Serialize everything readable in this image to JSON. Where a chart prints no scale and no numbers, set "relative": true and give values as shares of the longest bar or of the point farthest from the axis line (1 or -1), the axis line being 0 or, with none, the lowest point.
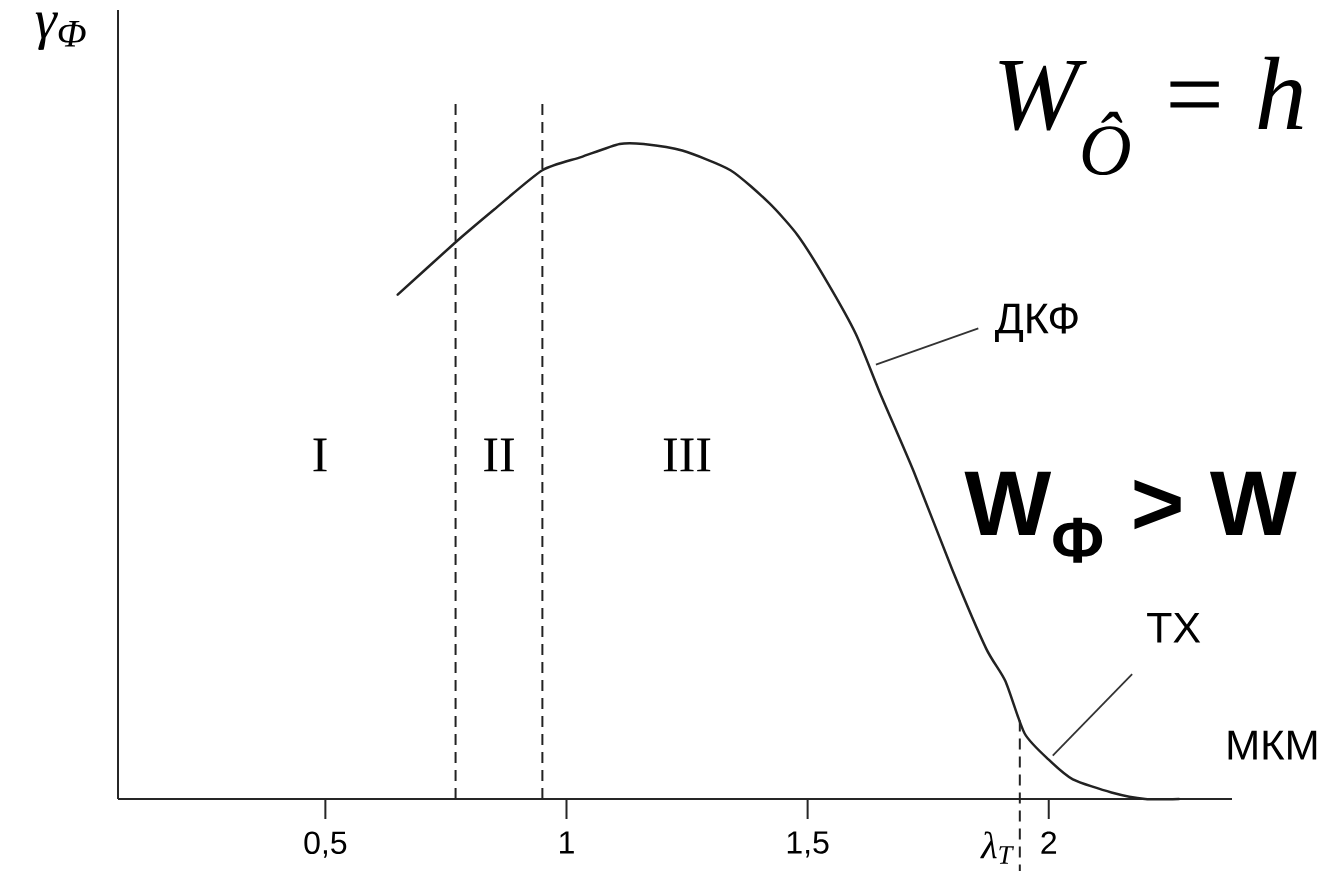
{
  "chart_data": {
    "type": "line",
    "ylabel": "γ$_{Φ}$",
    "xlabel": "МКМ",
    "x": [
      0.65,
      0.77,
      0.85,
      0.95,
      1.03,
      1.11,
      1.16,
      1.24,
      1.34,
      1.42,
      1.48,
      1.54,
      1.6,
      1.65,
      1.72,
      1.8,
      1.87,
      1.91,
      1.95,
      2.0,
      2.05,
      2.13,
      2.2,
      2.27
    ],
    "values": [
      0.77,
      0.85,
      0.9,
      0.96,
      0.98,
      1.0,
      1.0,
      0.99,
      0.96,
      0.91,
      0.86,
      0.79,
      0.71,
      0.62,
      0.5,
      0.35,
      0.23,
      0.18,
      0.1,
      0.06,
      0.03,
      0.01,
      0.0,
      0.0
    ],
    "color": "#222222",
    "relative": true,
    "xlim": [
      0.07,
      2.38
    ],
    "xticks": [
      {
        "value": 0.5,
        "label": "0,5"
      },
      1,
      {
        "value": 1.5,
        "label": "1,5"
      },
      2
    ],
    "ref_lines": [
      {
        "axis": "x",
        "value": 0.77,
        "line_style": "dashed"
      },
      {
        "axis": "x",
        "value": 0.95,
        "line_style": "dashed"
      },
      {
        "axis": "x",
        "value": 1.94,
        "label": "λ$_{T}$",
        "line_style": "dashed"
      }
    ],
    "annotations": [
      "I",
      "II",
      "III",
      {
        "text": "ДКФ",
        "x": 1.63,
        "y": 0.66
      },
      {
        "text": "ТХ",
        "x": 2.0,
        "y": 0.06
      },
      "W$_{Ô}$ = h",
      "W$_{Φ}$ > W"
    ]
  }
}
